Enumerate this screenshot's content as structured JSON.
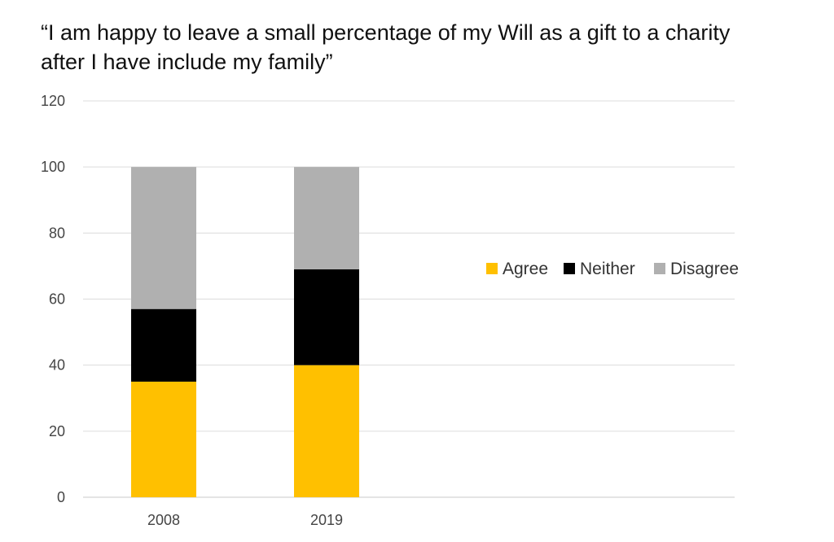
{
  "chart_data": {
    "type": "bar",
    "stacked": true,
    "title_lines": [
      "“I am happy to leave a small percentage of my Will as a gift to a charity",
      "after I have include my family”"
    ],
    "categories": [
      "2008",
      "2019"
    ],
    "series": [
      {
        "name": "Agree",
        "values": [
          35,
          40
        ],
        "color": "#FFC000"
      },
      {
        "name": "Neither",
        "values": [
          22,
          29
        ],
        "color": "#000000"
      },
      {
        "name": "Disagree",
        "values": [
          43,
          31
        ],
        "color": "#B0B0B0"
      }
    ],
    "ylim": [
      0,
      120
    ],
    "yticks": [
      0,
      20,
      40,
      60,
      80,
      100,
      120
    ],
    "grid": true,
    "legend_position": "right"
  }
}
